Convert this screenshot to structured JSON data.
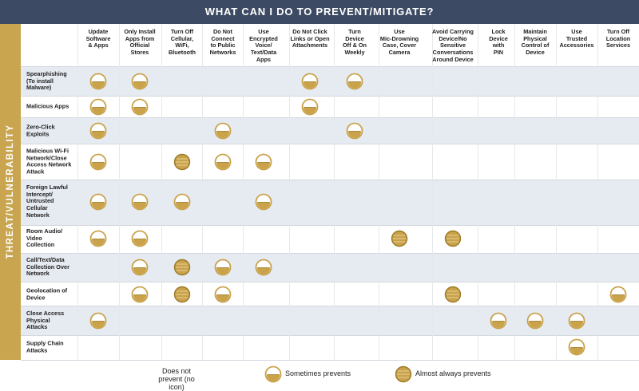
{
  "page": {
    "title": "WHAT CAN I DO TO PREVENT/MITIGATE?",
    "side_label": "THREAT/VULNERABILITY"
  },
  "colors": {
    "banner": "#3c4a63",
    "side": "#c8a54e",
    "band": "#e6ebf2",
    "gold": "#c9a24a",
    "gold_dark": "#9c7a28",
    "stripe": "#e7d29a"
  },
  "legend": {
    "none": "Does not prevent (no icon)",
    "sometimes": "Sometimes prevents",
    "almost": "Almost always prevents"
  },
  "chart_data": {
    "type": "table",
    "title": "WHAT CAN I DO TO PREVENT/MITIGATE?",
    "row_axis_label": "THREAT/VULNERABILITY",
    "value_key": {
      "0": "Does not prevent (no icon)",
      "1": "Sometimes prevents",
      "2": "Almost always prevents"
    },
    "columns": [
      "Update Software & Apps",
      "Only Install Apps from Official Stores",
      "Turn Off Cellular, WiFi, Bluetooth",
      "Do Not Connect to Public Networks",
      "Use Encrypted Voice/ Text/Data Apps",
      "Do Not Click Links or Open Attachments",
      "Turn Device Off & On Weekly",
      "Use Mic-Drowning Case, Cover Camera",
      "Avoid Carrying Device/No Sensitive Conversations Around Device",
      "Lock Device with PIN",
      "Maintain Physical Control of Device",
      "Use Trusted Accessories",
      "Turn Off Location Services"
    ],
    "rows": [
      {
        "label": "Spearphishing (To install Malware)",
        "values": [
          1,
          1,
          0,
          0,
          0,
          1,
          1,
          0,
          0,
          0,
          0,
          0,
          0
        ]
      },
      {
        "label": "Malicious Apps",
        "values": [
          1,
          1,
          0,
          0,
          0,
          1,
          0,
          0,
          0,
          0,
          0,
          0,
          0
        ]
      },
      {
        "label": "Zero-Click Exploits",
        "values": [
          1,
          0,
          0,
          1,
          0,
          0,
          1,
          0,
          0,
          0,
          0,
          0,
          0
        ]
      },
      {
        "label": "Malicious Wi-Fi Network/Close Access Network Attack",
        "values": [
          1,
          0,
          2,
          1,
          1,
          0,
          0,
          0,
          0,
          0,
          0,
          0,
          0
        ]
      },
      {
        "label": "Foreign Lawful Intercept/ Untrusted Cellular Network",
        "values": [
          1,
          1,
          1,
          0,
          1,
          0,
          0,
          0,
          0,
          0,
          0,
          0,
          0
        ]
      },
      {
        "label": "Room Audio/ Video Collection",
        "values": [
          1,
          1,
          0,
          0,
          0,
          0,
          0,
          2,
          2,
          0,
          0,
          0,
          0
        ]
      },
      {
        "label": "Call/Text/Data Collection Over Network",
        "values": [
          0,
          1,
          2,
          1,
          1,
          0,
          0,
          0,
          0,
          0,
          0,
          0,
          0
        ]
      },
      {
        "label": "Geolocation of Device",
        "values": [
          0,
          1,
          2,
          1,
          0,
          0,
          0,
          0,
          2,
          0,
          0,
          0,
          1
        ]
      },
      {
        "label": "Close Access Physical Attacks",
        "values": [
          1,
          0,
          0,
          0,
          0,
          0,
          0,
          0,
          0,
          1,
          1,
          1,
          0
        ]
      },
      {
        "label": "Supply Chain Attacks",
        "values": [
          0,
          0,
          0,
          0,
          0,
          0,
          0,
          0,
          0,
          0,
          0,
          1,
          0
        ]
      }
    ]
  }
}
